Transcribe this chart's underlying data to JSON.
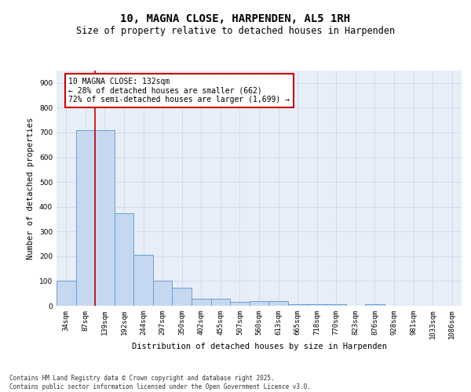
{
  "title1": "10, MAGNA CLOSE, HARPENDEN, AL5 1RH",
  "title2": "Size of property relative to detached houses in Harpenden",
  "xlabel": "Distribution of detached houses by size in Harpenden",
  "ylabel": "Number of detached properties",
  "categories": [
    "34sqm",
    "87sqm",
    "139sqm",
    "192sqm",
    "244sqm",
    "297sqm",
    "350sqm",
    "402sqm",
    "455sqm",
    "507sqm",
    "560sqm",
    "613sqm",
    "665sqm",
    "718sqm",
    "770sqm",
    "823sqm",
    "876sqm",
    "928sqm",
    "981sqm",
    "1033sqm",
    "1086sqm"
  ],
  "values": [
    100,
    710,
    710,
    375,
    205,
    100,
    72,
    27,
    30,
    15,
    18,
    18,
    7,
    5,
    6,
    0,
    5,
    0,
    0,
    0,
    0
  ],
  "bar_color": "#c5d8f0",
  "bar_edge_color": "#6a9fd8",
  "highlight_index": 2,
  "highlight_line_color": "#cc0000",
  "annotation_text": "10 MAGNA CLOSE: 132sqm\n← 28% of detached houses are smaller (662)\n72% of semi-detached houses are larger (1,699) →",
  "annotation_box_color": "#ffffff",
  "annotation_box_edge_color": "#cc0000",
  "ylim": [
    0,
    950
  ],
  "yticks": [
    0,
    100,
    200,
    300,
    400,
    500,
    600,
    700,
    800,
    900
  ],
  "grid_color": "#d0d8ea",
  "bg_color": "#e8eef8",
  "footnote": "Contains HM Land Registry data © Crown copyright and database right 2025.\nContains public sector information licensed under the Open Government Licence v3.0.",
  "title1_fontsize": 10,
  "title2_fontsize": 8.5,
  "label_fontsize": 7.5,
  "tick_fontsize": 6.5,
  "annotation_fontsize": 7,
  "footnote_fontsize": 5.5
}
